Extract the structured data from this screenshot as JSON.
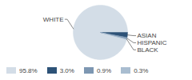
{
  "chart_data": {
    "type": "pie",
    "categories": [
      "WHITE",
      "ASIAN",
      "HISPANIC",
      "BLACK"
    ],
    "values": [
      95.8,
      3.0,
      0.9,
      0.3
    ],
    "value_labels": [
      "95.8%",
      "3.0%",
      "0.9%",
      "0.3%"
    ],
    "colors": [
      "#d3dde7",
      "#2d5277",
      "#7d97b2",
      "#a9bdd0"
    ],
    "legend": "bottom"
  }
}
